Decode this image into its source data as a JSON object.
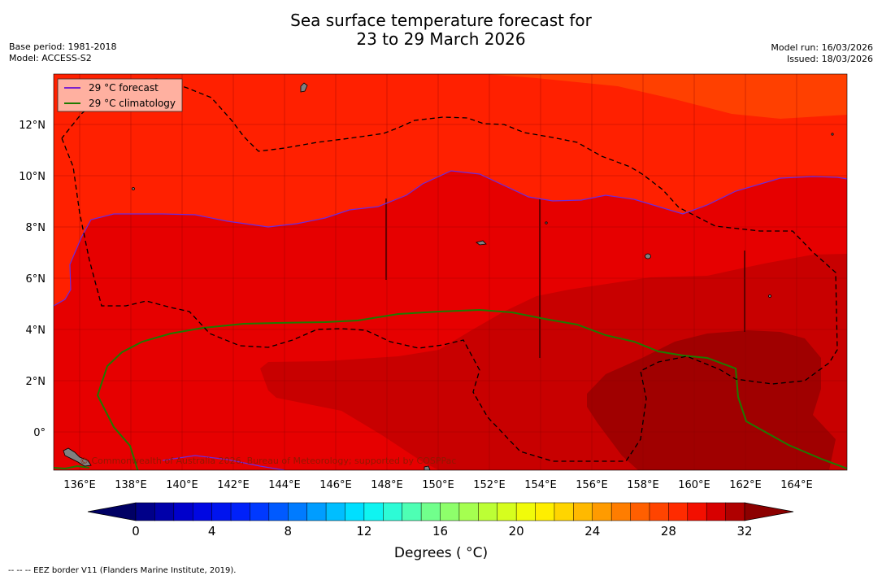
{
  "title": {
    "line1": "Sea surface temperature forecast for",
    "line2": "23 to 29 March 2026"
  },
  "meta_left": {
    "base_period": "Base period: 1981-2018",
    "model": "Model: ACCESS-S2"
  },
  "meta_right": {
    "model_run": "Model run: 16/03/2026",
    "issued": "Issued: 18/03/2026"
  },
  "map": {
    "region": "Western tropical Pacific",
    "y_ticks": [
      "12°N",
      "10°N",
      "8°N",
      "6°N",
      "4°N",
      "2°N",
      "0°"
    ],
    "x_ticks": [
      "136°E",
      "138°E",
      "140°E",
      "142°E",
      "144°E",
      "146°E",
      "148°E",
      "150°E",
      "152°E",
      "154°E",
      "156°E",
      "158°E",
      "160°E",
      "162°E",
      "164°E"
    ],
    "copyright": "© Commonwealth of Australia 2026, Bureau of Meteorology; supported by COSPPac",
    "colors": {
      "temp_29_30": "#ff2000",
      "temp_30_31": "#e60000",
      "temp_31_32": "#c80000",
      "temp_32_plus": "#a00000",
      "temp_28_29": "#ff4000"
    }
  },
  "legend": {
    "forecast": "29 °C  forecast",
    "climatology": "29 °C  climatology",
    "forecast_color": "#7b22cc",
    "climatology_color": "#1e7a00"
  },
  "colorbar": {
    "ticks": [
      "0",
      "4",
      "8",
      "12",
      "16",
      "20",
      "24",
      "28",
      "32"
    ],
    "label": "Degrees ( °C)",
    "range": [
      0,
      32
    ],
    "step": 1
  },
  "footnote": "--  --  -- EEZ border V11 (Flanders Marine Institute, 2019)."
}
